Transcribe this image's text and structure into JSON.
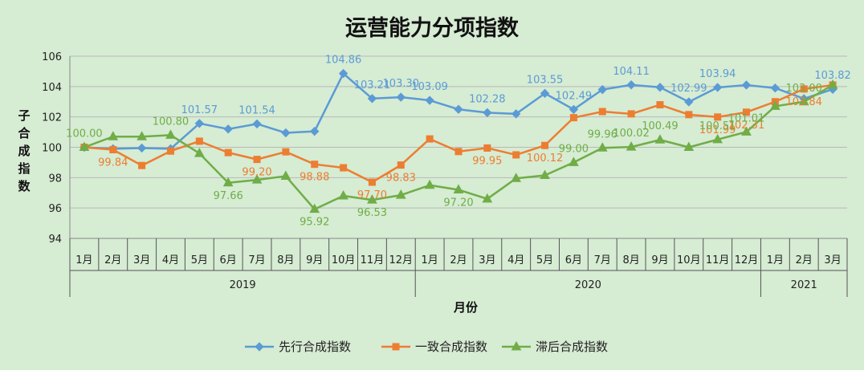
{
  "chart_data": {
    "type": "line",
    "title": "运营能力分项指数",
    "xlabel": "月份",
    "ylabel": "子合成指数",
    "ylim": [
      94,
      106
    ],
    "yticks": [
      94,
      96,
      98,
      100,
      102,
      104,
      106
    ],
    "grid": "horizontal",
    "legend_position": "bottom",
    "categories": [
      "1月",
      "2月",
      "3月",
      "4月",
      "5月",
      "6月",
      "7月",
      "8月",
      "9月",
      "10月",
      "11月",
      "12月",
      "1月",
      "2月",
      "3月",
      "4月",
      "5月",
      "6月",
      "7月",
      "8月",
      "9月",
      "10月",
      "11月",
      "12月",
      "1月",
      "2月",
      "3月"
    ],
    "year_groups": [
      {
        "label": "2019",
        "count": 12
      },
      {
        "label": "2020",
        "count": 12
      },
      {
        "label": "2021",
        "count": 3
      }
    ],
    "series": [
      {
        "name": "先行合成指数",
        "color": "#5b9bd5",
        "marker": "diamond",
        "values": [
          100.0,
          99.9,
          99.95,
          99.9,
          101.57,
          101.2,
          101.54,
          100.95,
          101.05,
          104.86,
          103.21,
          103.3,
          103.09,
          102.5,
          102.28,
          102.2,
          103.55,
          102.49,
          103.8,
          104.11,
          103.95,
          102.99,
          103.94,
          104.1,
          103.9,
          103.2,
          103.82
        ],
        "labels": [
          {
            "index": 4,
            "text": "101.57"
          },
          {
            "index": 6,
            "text": "101.54"
          },
          {
            "index": 9,
            "text": "104.86"
          },
          {
            "index": 10,
            "text": "103.21"
          },
          {
            "index": 11,
            "text": "103.30"
          },
          {
            "index": 12,
            "text": "103.09"
          },
          {
            "index": 14,
            "text": "102.28"
          },
          {
            "index": 16,
            "text": "103.55"
          },
          {
            "index": 17,
            "text": "102.49"
          },
          {
            "index": 19,
            "text": "104.11"
          },
          {
            "index": 21,
            "text": "102.99"
          },
          {
            "index": 22,
            "text": "103.94"
          },
          {
            "index": 26,
            "text": "103.82"
          }
        ]
      },
      {
        "name": "一致合成指数",
        "color": "#ed7d31",
        "marker": "square",
        "values": [
          100.0,
          99.84,
          98.8,
          99.75,
          100.4,
          99.65,
          99.2,
          99.7,
          98.88,
          98.65,
          97.7,
          98.83,
          100.55,
          99.72,
          99.95,
          99.5,
          100.12,
          101.95,
          102.35,
          102.2,
          102.8,
          102.15,
          101.99,
          102.31,
          103.0,
          103.84,
          104.1
        ],
        "labels": [
          {
            "index": 1,
            "text": "99.84"
          },
          {
            "index": 6,
            "text": "99.20"
          },
          {
            "index": 8,
            "text": "98.88"
          },
          {
            "index": 10,
            "text": "97.70"
          },
          {
            "index": 11,
            "text": "98.83"
          },
          {
            "index": 14,
            "text": "99.95"
          },
          {
            "index": 16,
            "text": "100.12"
          },
          {
            "index": 22,
            "text": "101.99"
          },
          {
            "index": 23,
            "text": "102.31"
          },
          {
            "index": 25,
            "text": "103.84"
          }
        ]
      },
      {
        "name": "滞后合成指数",
        "color": "#70ad47",
        "marker": "triangle",
        "values": [
          100.0,
          100.7,
          100.7,
          100.8,
          99.6,
          97.66,
          97.85,
          98.1,
          95.92,
          96.8,
          96.53,
          96.85,
          97.5,
          97.2,
          96.6,
          97.95,
          98.15,
          99.0,
          99.96,
          100.02,
          100.49,
          100.0,
          100.51,
          101.01,
          102.7,
          103.0,
          104.1
        ],
        "labels": [
          {
            "index": 0,
            "text": "100.00"
          },
          {
            "index": 3,
            "text": "100.80"
          },
          {
            "index": 5,
            "text": "97.66"
          },
          {
            "index": 8,
            "text": "95.92"
          },
          {
            "index": 10,
            "text": "96.53"
          },
          {
            "index": 13,
            "text": "97.20"
          },
          {
            "index": 17,
            "text": "99.00"
          },
          {
            "index": 18,
            "text": "99.96"
          },
          {
            "index": 19,
            "text": "100.02"
          },
          {
            "index": 20,
            "text": "100.49"
          },
          {
            "index": 22,
            "text": "100.51"
          },
          {
            "index": 23,
            "text": "101.01"
          },
          {
            "index": 25,
            "text": "103.00"
          }
        ]
      }
    ]
  }
}
